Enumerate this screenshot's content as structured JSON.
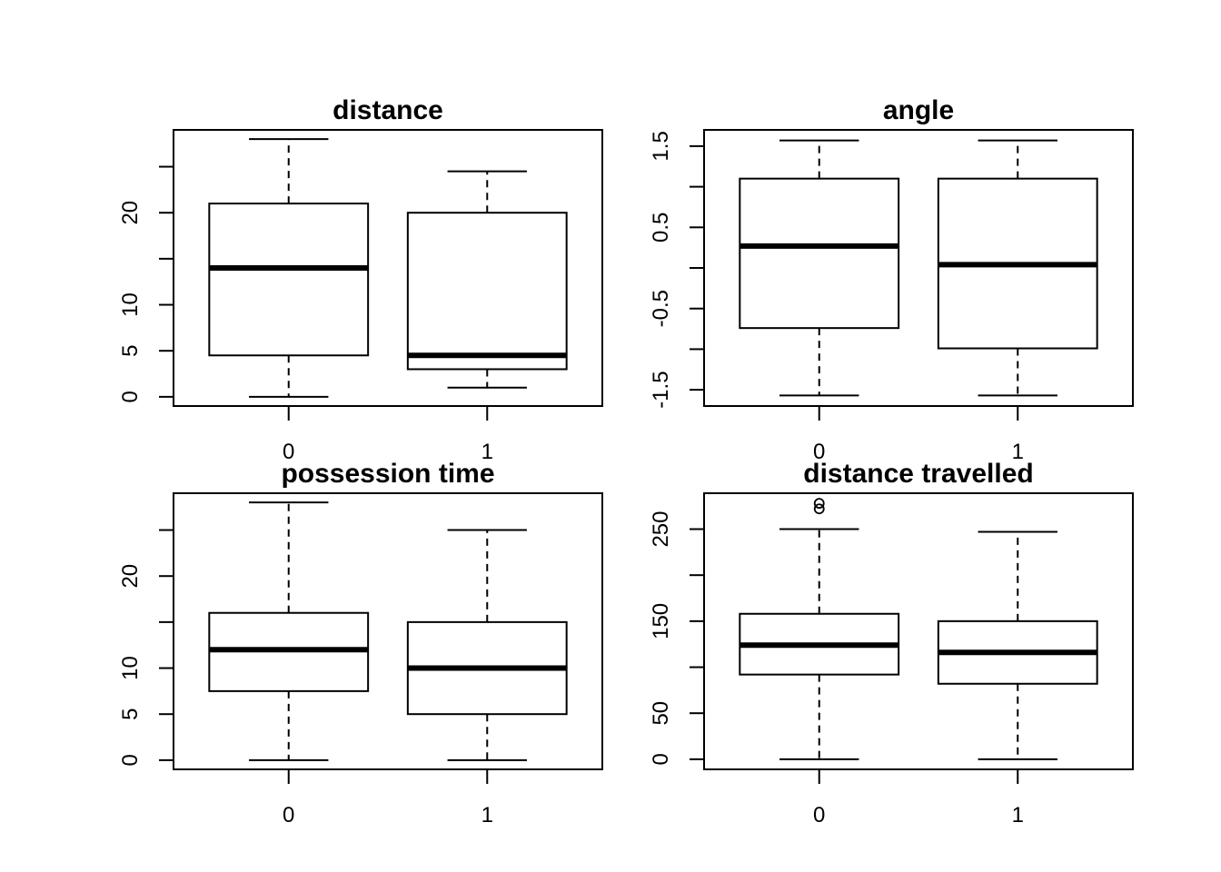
{
  "chart_data": [
    {
      "type": "boxplot",
      "title": "distance",
      "categories": [
        "0",
        "1"
      ],
      "yticks": [
        0,
        5,
        10,
        15,
        20,
        25
      ],
      "ytick_labels": [
        "0",
        "5",
        "10",
        "",
        "20",
        ""
      ],
      "ylim": [
        -1,
        29
      ],
      "boxes": [
        {
          "category": "0",
          "whisker_low": 0,
          "q1": 4.5,
          "median": 14,
          "q3": 21,
          "whisker_high": 28,
          "outliers": []
        },
        {
          "category": "1",
          "whisker_low": 1,
          "q1": 3,
          "median": 4.5,
          "q3": 20,
          "whisker_high": 24.5,
          "outliers": []
        }
      ]
    },
    {
      "type": "boxplot",
      "title": "angle",
      "categories": [
        "0",
        "1"
      ],
      "yticks": [
        -1.5,
        -1,
        -0.5,
        0,
        0.5,
        1,
        1.5
      ],
      "ytick_labels": [
        "-1.5",
        "",
        "-0.5",
        "",
        "0.5",
        "",
        "1.5"
      ],
      "ylim": [
        -1.7,
        1.7
      ],
      "boxes": [
        {
          "category": "0",
          "whisker_low": -1.57,
          "q1": -0.74,
          "median": 0.27,
          "q3": 1.1,
          "whisker_high": 1.57,
          "outliers": []
        },
        {
          "category": "1",
          "whisker_low": -1.57,
          "q1": -0.99,
          "median": 0.04,
          "q3": 1.1,
          "whisker_high": 1.57,
          "outliers": []
        }
      ]
    },
    {
      "type": "boxplot",
      "title": "possession time",
      "categories": [
        "0",
        "1"
      ],
      "yticks": [
        0,
        5,
        10,
        15,
        20,
        25
      ],
      "ytick_labels": [
        "0",
        "5",
        "10",
        "",
        "20",
        ""
      ],
      "ylim": [
        -1,
        29
      ],
      "boxes": [
        {
          "category": "0",
          "whisker_low": 0,
          "q1": 7.5,
          "median": 12,
          "q3": 16,
          "whisker_high": 28,
          "outliers": []
        },
        {
          "category": "1",
          "whisker_low": 0,
          "q1": 5,
          "median": 10,
          "q3": 15,
          "whisker_high": 25,
          "outliers": []
        }
      ]
    },
    {
      "type": "boxplot",
      "title": "distance travelled",
      "categories": [
        "0",
        "1"
      ],
      "yticks": [
        0,
        50,
        100,
        150,
        200,
        250
      ],
      "ytick_labels": [
        "0",
        "50",
        "",
        "150",
        "",
        "250"
      ],
      "ylim": [
        -11,
        289
      ],
      "boxes": [
        {
          "category": "0",
          "whisker_low": 0,
          "q1": 92,
          "median": 124,
          "q3": 158,
          "whisker_high": 250,
          "outliers": [
            272,
            278
          ]
        },
        {
          "category": "1",
          "whisker_low": 0,
          "q1": 82,
          "median": 116,
          "q3": 150,
          "whisker_high": 247,
          "outliers": []
        }
      ]
    }
  ]
}
